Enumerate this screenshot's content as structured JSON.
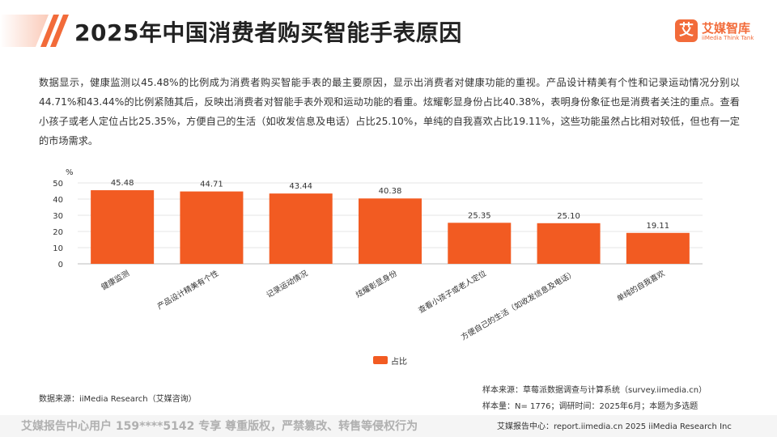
{
  "header": {
    "title": "2025年中国消费者购买智能手表原因",
    "logo_mark": "艾",
    "logo_name": "艾媒智库",
    "logo_sub": "iiMedia Think Tank"
  },
  "summary": "数据显示，健康监测以45.48%的比例成为消费者购买智能手表的最主要原因，显示出消费者对健康功能的重视。产品设计精美有个性和记录运动情况分别以44.71%和43.44%的比例紧随其后，反映出消费者对智能手表外观和运动功能的看重。炫耀彰显身份占比40.38%，表明身份象征也是消费者关注的重点。查看小孩子或老人定位占比25.35%，方便自己的生活（如收发信息及电话）占比25.10%，单纯的自我喜欢占比19.11%，这些功能虽然占比相对较低，但也有一定的市场需求。",
  "chart_data": {
    "type": "bar",
    "ylabel": "%",
    "ylim": [
      0,
      50
    ],
    "yticks": [
      0,
      10,
      20,
      30,
      40,
      50
    ],
    "grid": true,
    "legend_position": "bottom",
    "categories": [
      "健康监测",
      "产品设计精美有个性",
      "记录运动情况",
      "炫耀彰显身份",
      "查看小孩子或老人定位",
      "方便自己的生活（如收发信息及电话）",
      "单纯的自我喜欢"
    ],
    "series": [
      {
        "name": "占比",
        "values": [
          45.48,
          44.71,
          43.44,
          40.38,
          25.35,
          25.1,
          19.11
        ],
        "labels": [
          "45.48",
          "44.71",
          "43.44",
          "40.38",
          "25.35",
          "25.10",
          "19.11"
        ]
      }
    ],
    "colors": {
      "bar": "#f25b22",
      "grid": "#e6e6e6",
      "axis": "#bbbbbb"
    }
  },
  "sources": {
    "data_source": "数据来源：iiMedia Research（艾媒咨询）",
    "sample_source": "样本来源：草莓派数据调查与计算系统（survey.iimedia.cn）",
    "sample_size": "样本量：N= 1776；调研时间：2025年6月；本题为多选题"
  },
  "footer": {
    "watermark": "艾媒报告中心用户 159****5142 专享 尊重版权，严禁篡改、转售等侵权行为",
    "center": "艾媒报告中心：report.iimedia.cn  2025 iiMedia Research Inc"
  },
  "colors": {
    "accent": "#f26b3a",
    "bar": "#f25b22"
  },
  "icons": {
    "logo": "iimedia-logo-icon",
    "decoration": "title-slash-decoration"
  }
}
